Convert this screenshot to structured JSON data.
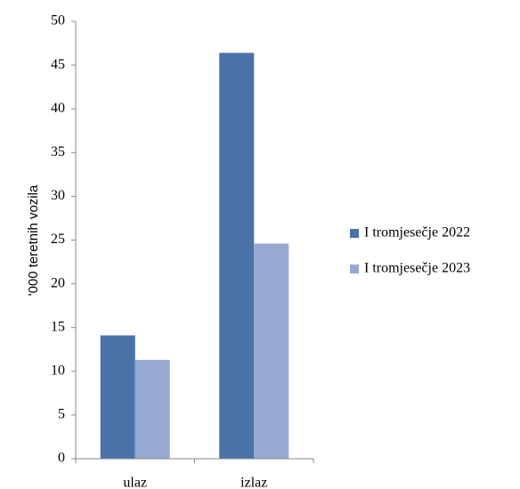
{
  "chart_data": {
    "type": "bar",
    "y_label": "'000 teretnih vozila",
    "categories": [
      "ulaz",
      "izlaz"
    ],
    "series": [
      {
        "name": "I tromjesečje 2022",
        "color": "#4a72a8",
        "values": [
          14.1,
          46.4
        ]
      },
      {
        "name": "I tromjesečje 2023",
        "color": "#95a9d2",
        "values": [
          11.3,
          24.6
        ]
      }
    ],
    "ylim": [
      0,
      50
    ],
    "yticks": [
      0,
      5,
      10,
      15,
      20,
      25,
      30,
      35,
      40,
      45,
      50
    ],
    "legend": "right"
  }
}
